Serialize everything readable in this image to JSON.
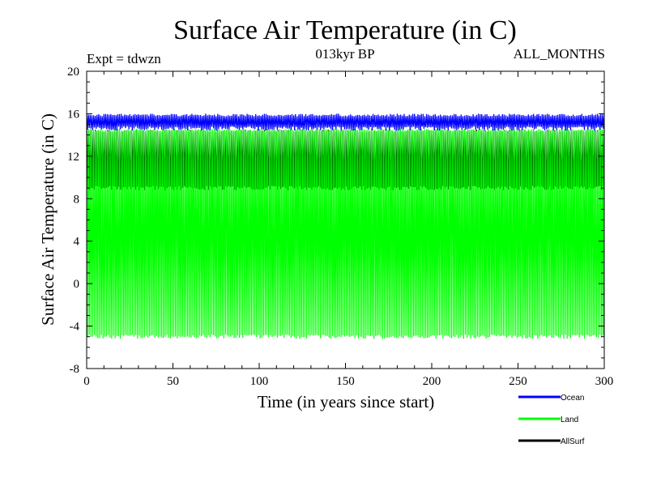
{
  "chart_data": {
    "type": "line",
    "title": "Surface Air Temperature (in C)",
    "subtitle_left": "Expt = tdwzn",
    "subtitle_center": "013kyr BP",
    "subtitle_right": "ALL_MONTHS",
    "xlabel": "Time (in years since start)",
    "ylabel": "Surface Air Temperature (in C)",
    "xlim": [
      0,
      300
    ],
    "ylim": [
      -8,
      20
    ],
    "x_ticks": [
      "0",
      "50",
      "100",
      "150",
      "200",
      "250",
      "300"
    ],
    "y_ticks": [
      "-8",
      "-4",
      "0",
      "4",
      "8",
      "12",
      "16",
      "20"
    ],
    "grid": false,
    "legend_position": "bottom-right, outside plot",
    "series": [
      {
        "name": "Ocean",
        "color": "#0000ff",
        "min_approx": 14.4,
        "max_approx": 16.0,
        "mean_approx": 15.2,
        "note": "monthly values oscillate between min and max every year"
      },
      {
        "name": "Land",
        "color": "#00ff00",
        "min_approx": -5.2,
        "max_approx": 14.6,
        "mean_approx": 4.7,
        "note": "monthly values oscillate between min and max every year"
      },
      {
        "name": "AllSurf",
        "color": "#000000",
        "min_approx": 8.8,
        "max_approx": 14.5,
        "mean_approx": 11.6,
        "note": "monthly values oscillate between min and max every year"
      }
    ]
  }
}
